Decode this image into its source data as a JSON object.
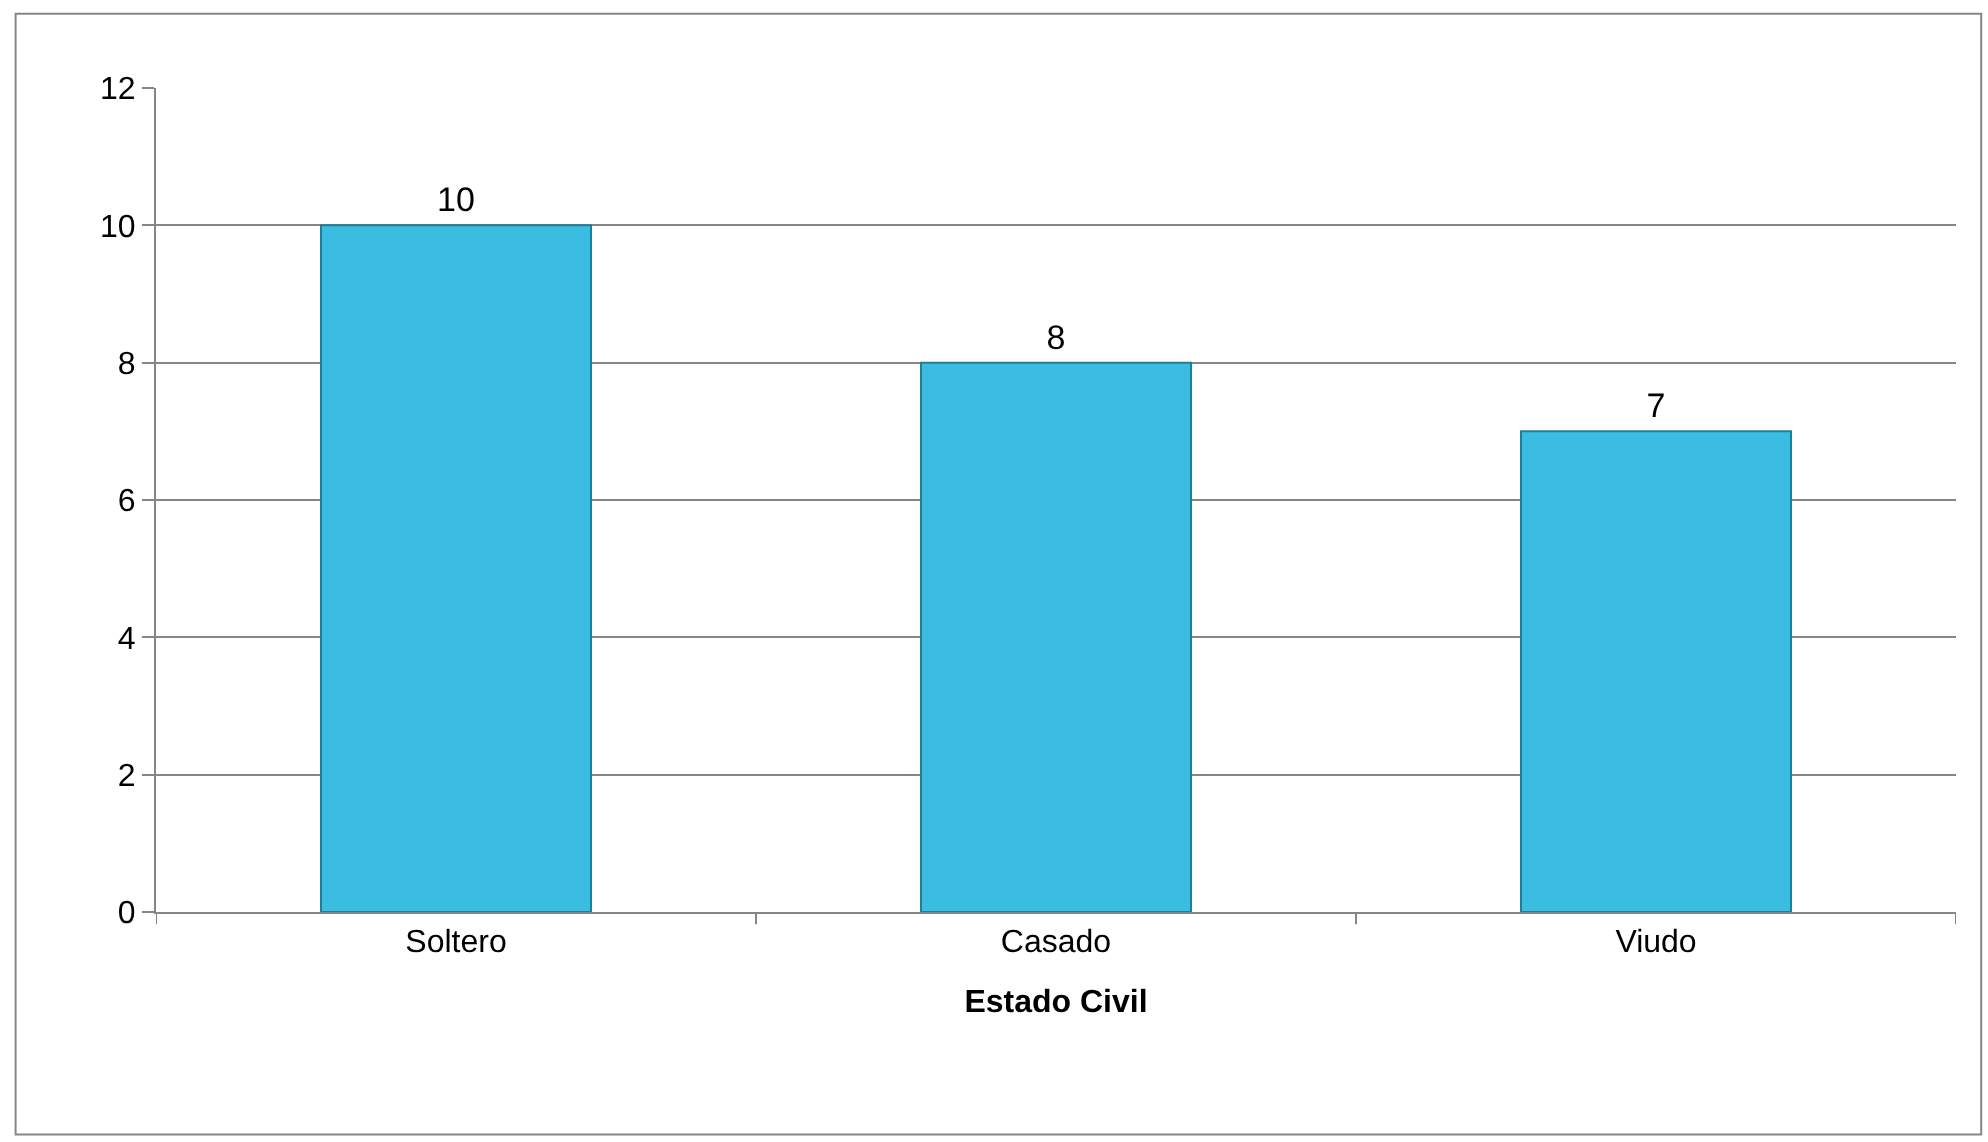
{
  "chart_data": {
    "type": "bar",
    "xlabel": "Estado Civil",
    "categories": [
      "Soltero",
      "Casado",
      "Viudo"
    ],
    "values": [
      10,
      8,
      7
    ],
    "color": "#3bbde2",
    "ylim": [
      0,
      12
    ],
    "yticks": [
      0,
      2,
      4,
      6,
      8,
      10,
      12
    ],
    "grid": "y",
    "legend": false,
    "data_labels": true
  }
}
